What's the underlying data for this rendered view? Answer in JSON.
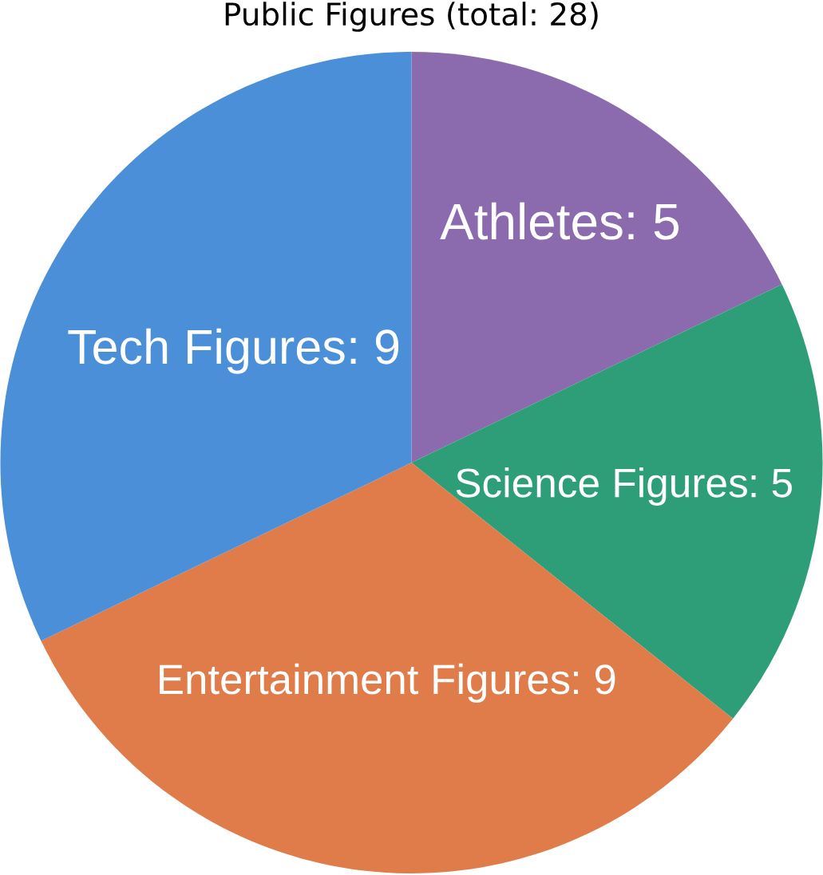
{
  "chart_data": {
    "type": "pie",
    "title": "Public Figures (total: 28)",
    "categories": [
      "Athletes",
      "Science Figures",
      "Entertainment Figures",
      "Tech Figures"
    ],
    "values": [
      5,
      5,
      9,
      9
    ],
    "colors": [
      "#8b6bae",
      "#2e9e78",
      "#e07b4a",
      "#4a8fd8"
    ],
    "value_labels": [
      ": 5",
      ": 5",
      ": 9",
      ": 9"
    ]
  }
}
